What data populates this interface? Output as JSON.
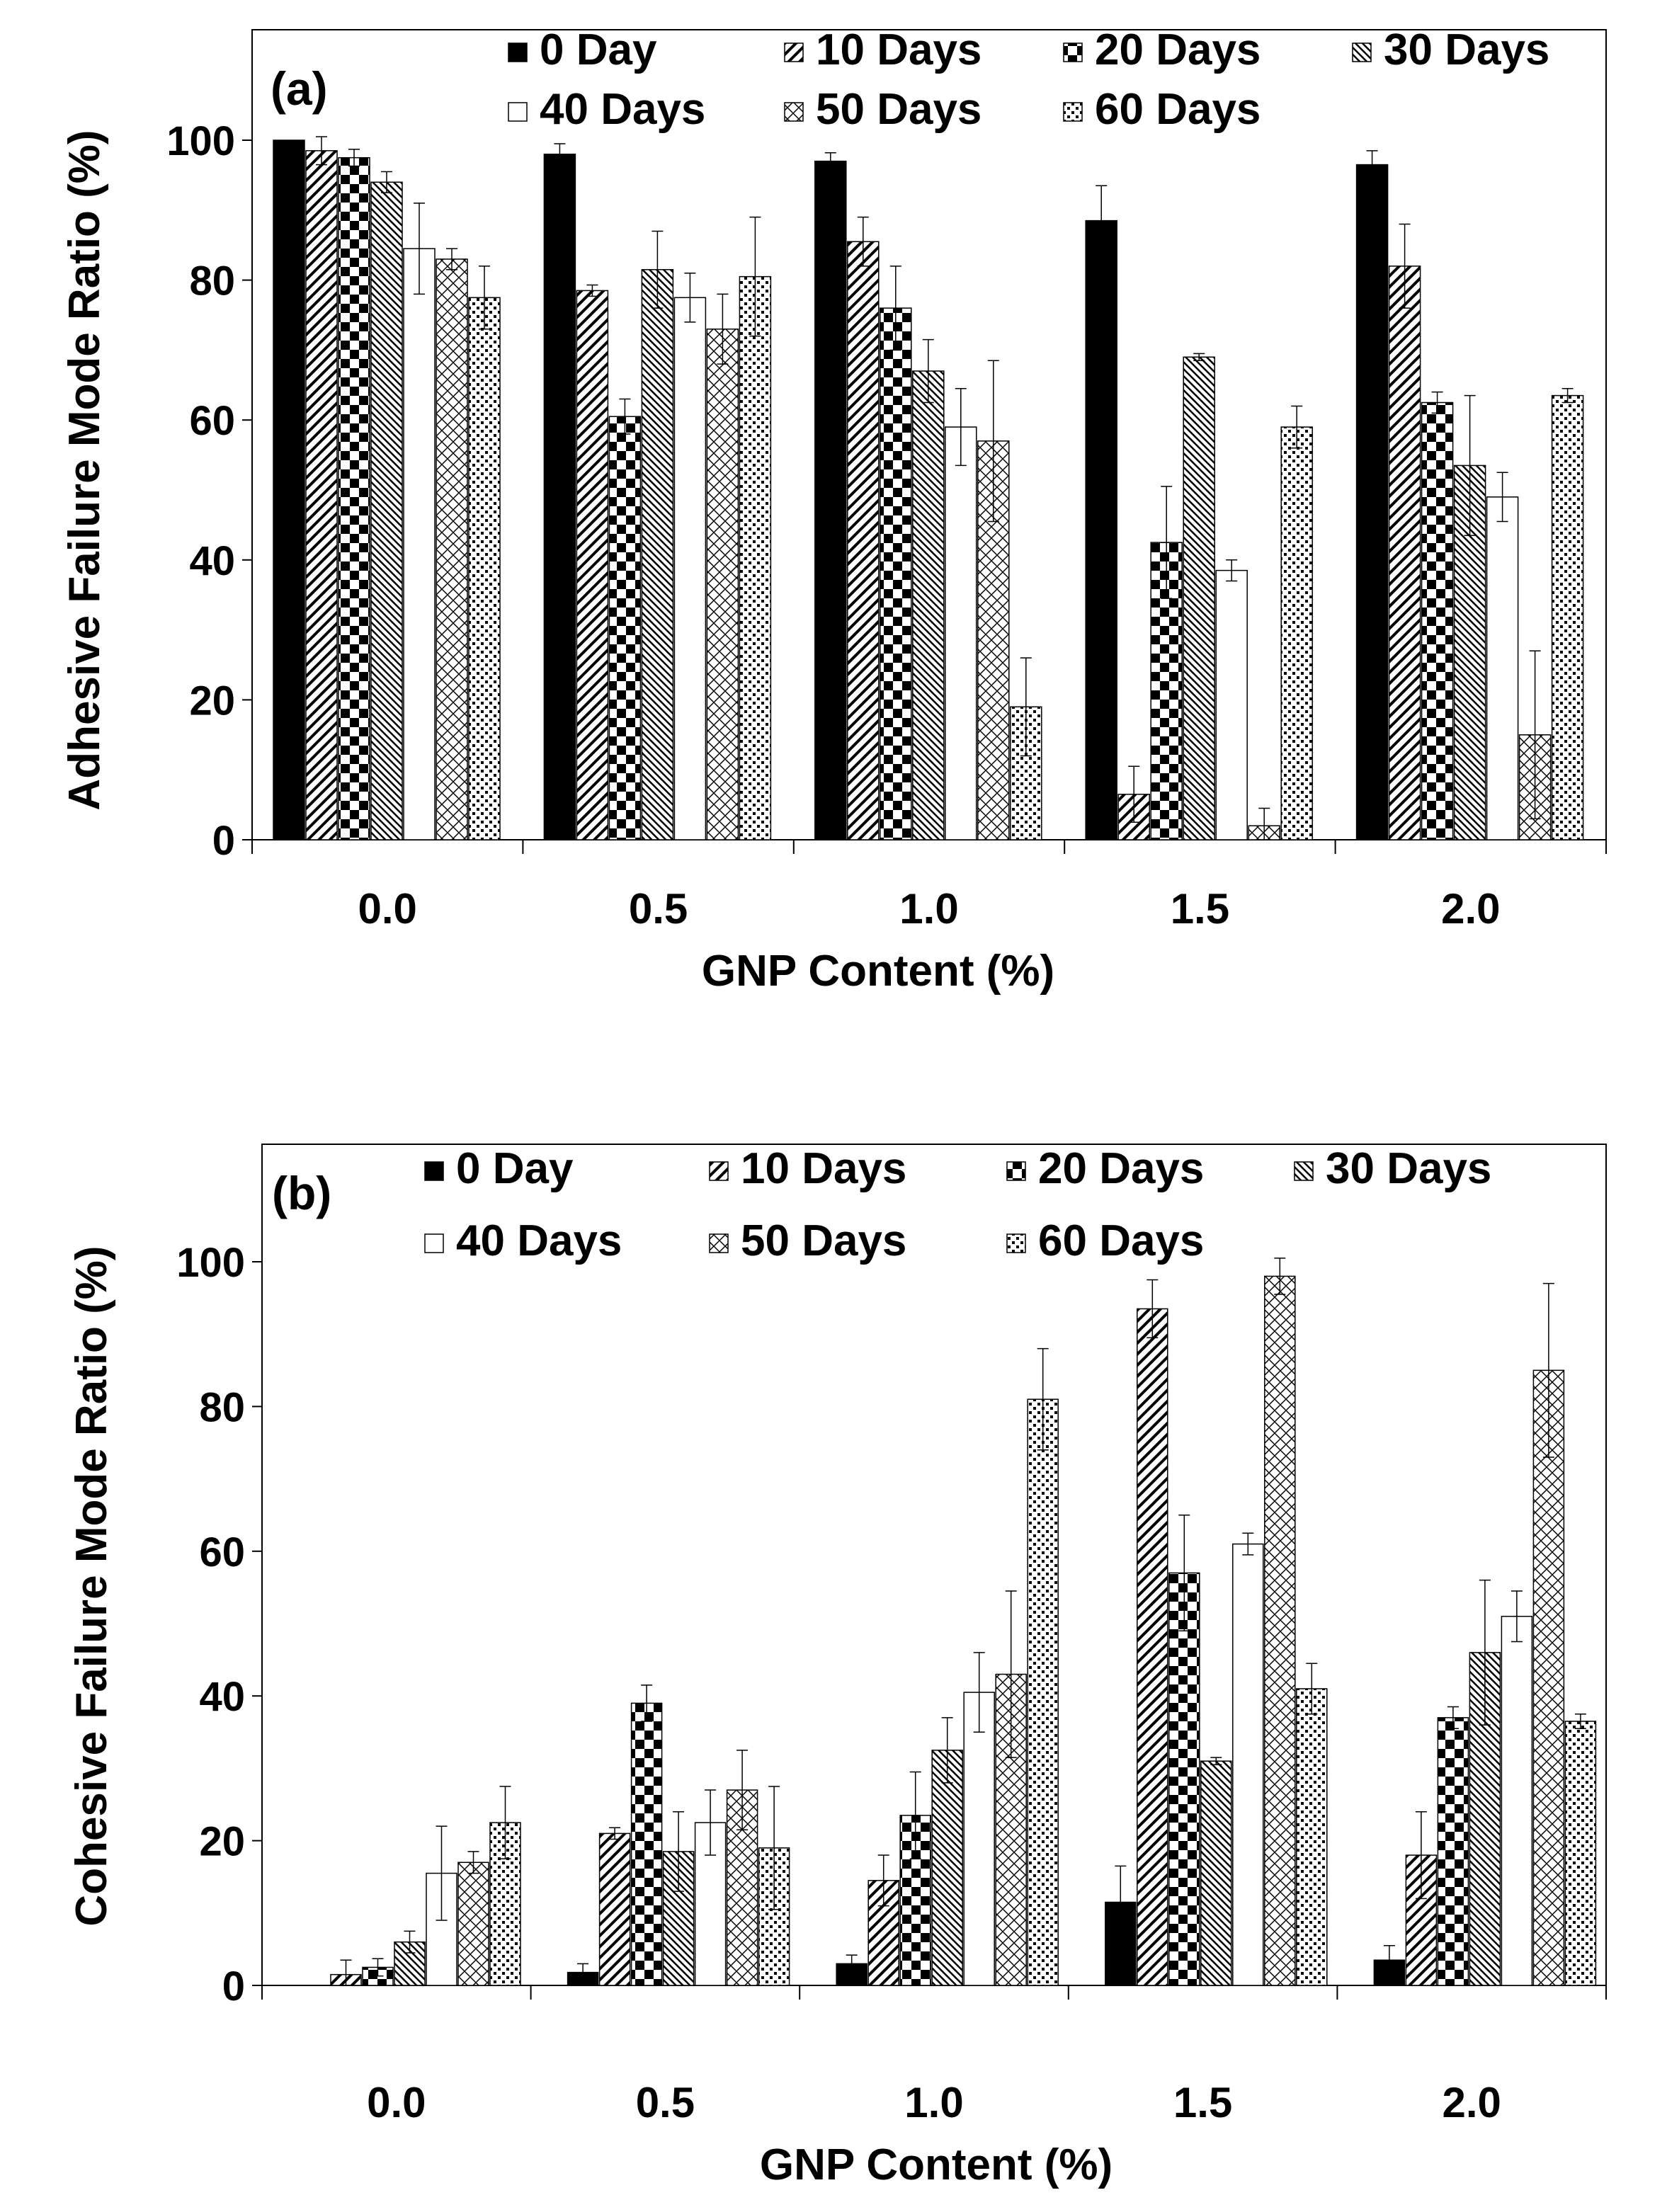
{
  "chart_data": [
    {
      "type": "bar",
      "panel_label": "(a)",
      "title": "",
      "xlabel": "GNP Content (%)",
      "ylabel": "Adhesive Failure Mode Ratio (%)",
      "ylim": [
        0,
        115
      ],
      "yticks": [
        "0",
        "20",
        "40",
        "60",
        "80",
        "100"
      ],
      "categories": [
        "0.0",
        "0.5",
        "1.0",
        "1.5",
        "2.0"
      ],
      "legend_position": "top",
      "series": [
        {
          "name": "0 Day",
          "pattern": "solid",
          "values": [
            100,
            98,
            97,
            88.5,
            96.5
          ],
          "errors": [
            0,
            1.5,
            1.2,
            5,
            2
          ]
        },
        {
          "name": "10 Days",
          "pattern": "diag",
          "values": [
            98.5,
            78.5,
            85.5,
            6.5,
            82
          ],
          "errors": [
            2,
            0.8,
            3.5,
            4,
            6
          ]
        },
        {
          "name": "20 Days",
          "pattern": "checker",
          "values": [
            97.5,
            60.5,
            76,
            42.5,
            62.5
          ],
          "errors": [
            1.2,
            2.5,
            6,
            8,
            1.5
          ]
        },
        {
          "name": "30 Days",
          "pattern": "diagdense",
          "values": [
            94,
            81.5,
            67,
            69,
            53.5
          ],
          "errors": [
            1.5,
            5.5,
            4.5,
            0.5,
            10
          ]
        },
        {
          "name": "40 Days",
          "pattern": "open",
          "values": [
            84.5,
            77.5,
            59,
            38.5,
            49
          ],
          "errors": [
            6.5,
            3.5,
            5.5,
            1.5,
            3.5
          ]
        },
        {
          "name": "50 Days",
          "pattern": "cross",
          "values": [
            83,
            73,
            57,
            2,
            15
          ],
          "errors": [
            1.5,
            5,
            11.5,
            2.5,
            12
          ]
        },
        {
          "name": "60 Days",
          "pattern": "dots",
          "values": [
            77.5,
            80.5,
            19,
            59,
            63.5
          ],
          "errors": [
            4.5,
            8.5,
            7,
            3,
            1
          ]
        }
      ]
    },
    {
      "type": "bar",
      "panel_label": "(b)",
      "title": "",
      "xlabel": "GNP Content (%)",
      "ylabel": "Cohesive Failure Mode Ratio (%)",
      "ylim": [
        0,
        115
      ],
      "yticks": [
        "0",
        "20",
        "40",
        "60",
        "80",
        "100"
      ],
      "categories": [
        "0.0",
        "0.5",
        "1.0",
        "1.5",
        "2.0"
      ],
      "legend_position": "top",
      "series": [
        {
          "name": "0 Day",
          "pattern": "solid",
          "values": [
            0,
            1.8,
            3,
            11.5,
            3.5
          ],
          "errors": [
            0,
            1.2,
            1.2,
            5,
            2
          ]
        },
        {
          "name": "10 Days",
          "pattern": "diag",
          "values": [
            1.5,
            21,
            14.5,
            93.5,
            18
          ],
          "errors": [
            2,
            0.8,
            3.5,
            4,
            6
          ]
        },
        {
          "name": "20 Days",
          "pattern": "checker",
          "values": [
            2.5,
            39,
            23.5,
            57,
            37
          ],
          "errors": [
            1.2,
            2.5,
            6,
            8,
            1.5
          ]
        },
        {
          "name": "30 Days",
          "pattern": "diagdense",
          "values": [
            6,
            18.5,
            32.5,
            31,
            46
          ],
          "errors": [
            1.5,
            5.5,
            4.5,
            0.5,
            10
          ]
        },
        {
          "name": "40 Days",
          "pattern": "open",
          "values": [
            15.5,
            22.5,
            40.5,
            61,
            51
          ],
          "errors": [
            6.5,
            4.5,
            5.5,
            1.5,
            3.5
          ]
        },
        {
          "name": "50 Days",
          "pattern": "cross",
          "values": [
            17,
            27,
            43,
            98,
            85
          ],
          "errors": [
            1.5,
            5.5,
            11.5,
            2.5,
            12
          ]
        },
        {
          "name": "60 Days",
          "pattern": "dots",
          "values": [
            22.5,
            19,
            81,
            41,
            36.5
          ],
          "errors": [
            5,
            8.5,
            7,
            3.5,
            1
          ]
        }
      ]
    }
  ]
}
